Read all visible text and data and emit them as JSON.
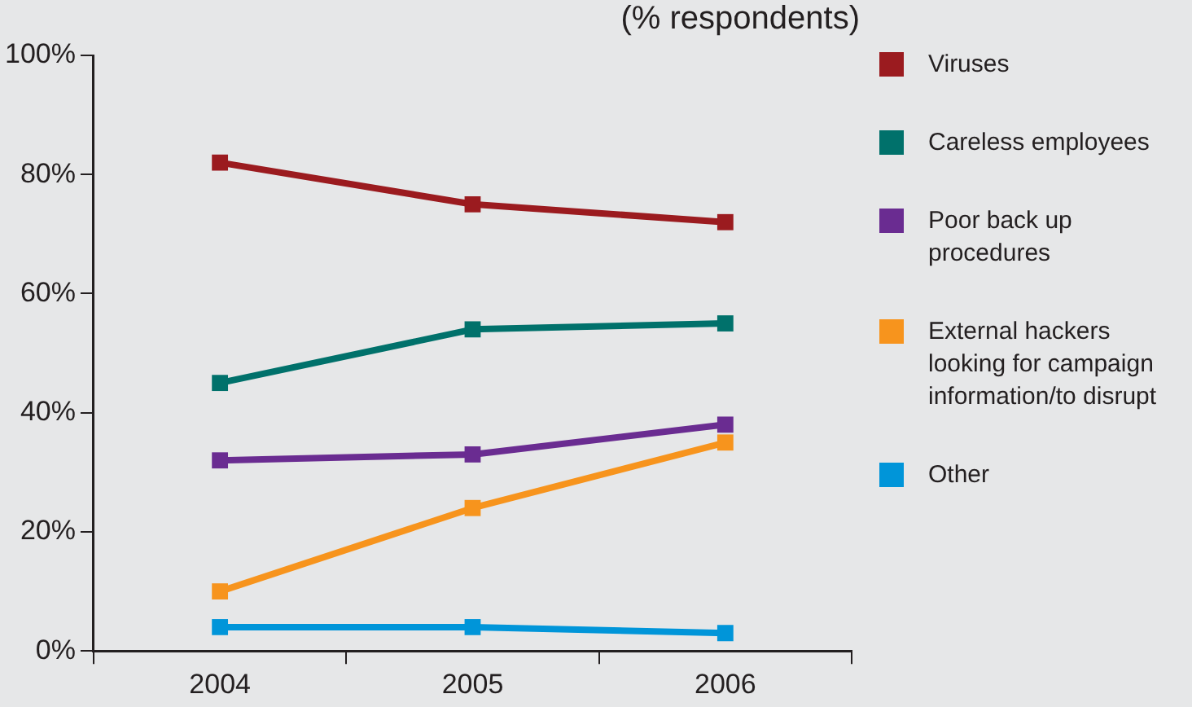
{
  "chart_data": {
    "type": "line",
    "title": "(% respondents)",
    "categories": [
      "2004",
      "2005",
      "2006"
    ],
    "series": [
      {
        "name": "Viruses",
        "color": "#9b1b1f",
        "values": [
          82,
          75,
          72
        ]
      },
      {
        "name": "Careless employees",
        "color": "#00716b",
        "values": [
          45,
          54,
          55
        ]
      },
      {
        "name": "Poor back up procedures",
        "color": "#6a2c91",
        "values": [
          32,
          33,
          38
        ]
      },
      {
        "name": "External hackers looking for campaign information/to disrupt",
        "color": "#f7941d",
        "values": [
          10,
          24,
          35
        ]
      },
      {
        "name": "Other",
        "color": "#0095d9",
        "values": [
          4,
          4,
          3
        ]
      }
    ],
    "ylim": [
      0,
      100
    ],
    "yticks": [
      {
        "value": 0,
        "label": "0%"
      },
      {
        "value": 20,
        "label": "20%"
      },
      {
        "value": 40,
        "label": "40%"
      },
      {
        "value": 60,
        "label": "60%"
      },
      {
        "value": 80,
        "label": "80%"
      },
      {
        "value": 100,
        "label": "100%"
      }
    ],
    "grid": false,
    "legend": "right",
    "marker": "square",
    "line_style": "solid"
  }
}
